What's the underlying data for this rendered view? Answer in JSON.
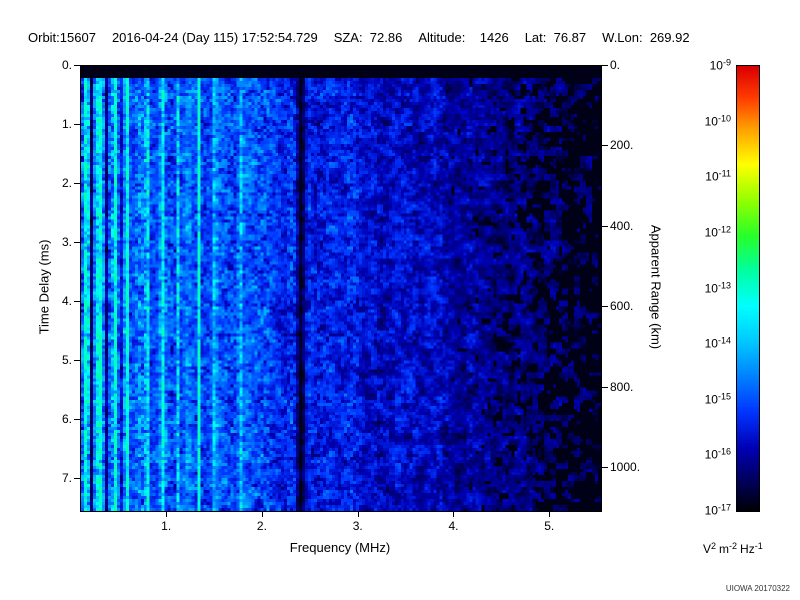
{
  "header": {
    "segments": [
      "Orbit:15607",
      "2016-04-24 (Day 115) 17:52:54.729",
      "SZA:  72.86",
      "Altitude:    1426",
      "Lat:  76.87",
      "W.Lon:  269.92"
    ]
  },
  "watermark": "UIOWA 20170322",
  "chart_data": {
    "type": "heatmap",
    "title": "",
    "x_axis": {
      "label": "Frequency (MHz)",
      "min": 0.1,
      "max": 5.53,
      "ticks": [
        {
          "v": 1,
          "label": "1."
        },
        {
          "v": 2,
          "label": "2."
        },
        {
          "v": 3,
          "label": "3."
        },
        {
          "v": 4,
          "label": "4."
        },
        {
          "v": 5,
          "label": "5."
        }
      ]
    },
    "y_axis": {
      "label": "Time Delay (ms)",
      "min": 0.0,
      "max": 7.54,
      "ticks": [
        {
          "v": 0,
          "label": "0."
        },
        {
          "v": 1,
          "label": "1."
        },
        {
          "v": 2,
          "label": "2."
        },
        {
          "v": 3,
          "label": "3."
        },
        {
          "v": 4,
          "label": "4."
        },
        {
          "v": 5,
          "label": "5."
        },
        {
          "v": 6,
          "label": "6."
        },
        {
          "v": 7,
          "label": "7."
        }
      ]
    },
    "y2_axis": {
      "label": "Apparent Range (km)",
      "min": 0,
      "max": 1107,
      "ticks": [
        {
          "v": 0,
          "label": "0."
        },
        {
          "v": 200,
          "label": "200."
        },
        {
          "v": 400,
          "label": "400."
        },
        {
          "v": 600,
          "label": "600."
        },
        {
          "v": 800,
          "label": "800."
        },
        {
          "v": 1000,
          "label": "1000."
        }
      ]
    },
    "colorbar": {
      "min_value": "1e-17",
      "max_value": "1e-9",
      "tick_exponents": [
        "-9",
        "-10",
        "-11",
        "-12",
        "-13",
        "-14",
        "-15",
        "-16",
        "-17"
      ],
      "unit_parts": [
        {
          "base": "V",
          "exp": "2"
        },
        {
          "base": "m",
          "exp": "-2"
        },
        {
          "base": "Hz",
          "exp": "-1"
        }
      ],
      "stops": [
        {
          "p": 0.0,
          "c": "#000008"
        },
        {
          "p": 0.05,
          "c": "#000048"
        },
        {
          "p": 0.14,
          "c": "#0000b4"
        },
        {
          "p": 0.22,
          "c": "#0034ff"
        },
        {
          "p": 0.3,
          "c": "#0080ff"
        },
        {
          "p": 0.38,
          "c": "#00c8ff"
        },
        {
          "p": 0.46,
          "c": "#00ffff"
        },
        {
          "p": 0.54,
          "c": "#00ffa0"
        },
        {
          "p": 0.62,
          "c": "#28ff28"
        },
        {
          "p": 0.7,
          "c": "#96ff00"
        },
        {
          "p": 0.78,
          "c": "#ffff00"
        },
        {
          "p": 0.86,
          "c": "#ffa000"
        },
        {
          "p": 0.93,
          "c": "#ff3c00"
        },
        {
          "p": 1.0,
          "c": "#dc0000"
        }
      ]
    },
    "features": {
      "top_black_ms": 0.18,
      "baseline": [
        [
          0.1,
          0.3
        ],
        [
          0.55,
          0.27
        ],
        [
          1.0,
          0.26
        ],
        [
          1.6,
          0.24
        ],
        [
          2.3,
          0.21
        ],
        [
          2.55,
          0.19
        ],
        [
          3.2,
          0.16
        ],
        [
          4.0,
          0.13
        ],
        [
          4.6,
          0.1
        ],
        [
          5.53,
          0.07
        ]
      ],
      "bright_lines": [
        {
          "f": 0.125,
          "amp": 0.35,
          "w": 0.018
        },
        {
          "f": 0.16,
          "amp": 0.3,
          "w": 0.018
        },
        {
          "f": 0.29,
          "amp": 0.33,
          "w": 0.018
        },
        {
          "f": 0.45,
          "amp": 0.45,
          "w": 0.016
        },
        {
          "f": 0.58,
          "amp": 0.25,
          "w": 0.018
        },
        {
          "f": 0.79,
          "amp": 0.3,
          "w": 0.018
        },
        {
          "f": 0.95,
          "amp": 0.22,
          "w": 0.018
        },
        {
          "f": 1.12,
          "amp": 0.2,
          "w": 0.018
        },
        {
          "f": 1.33,
          "amp": 0.38,
          "w": 0.016
        },
        {
          "f": 1.5,
          "amp": 0.2,
          "w": 0.018
        },
        {
          "f": 1.76,
          "amp": 0.15,
          "w": 0.02
        }
      ],
      "dark_lines": [
        {
          "f": 0.105,
          "depth": 0.85,
          "w": 0.014
        },
        {
          "f": 0.205,
          "depth": 0.8,
          "w": 0.016
        },
        {
          "f": 0.37,
          "depth": 0.7,
          "w": 0.016
        },
        {
          "f": 0.52,
          "depth": 0.45,
          "w": 0.014
        },
        {
          "f": 2.4,
          "depth": 0.95,
          "w": 0.045
        }
      ],
      "patch_start_mhz": 3.7
    }
  }
}
